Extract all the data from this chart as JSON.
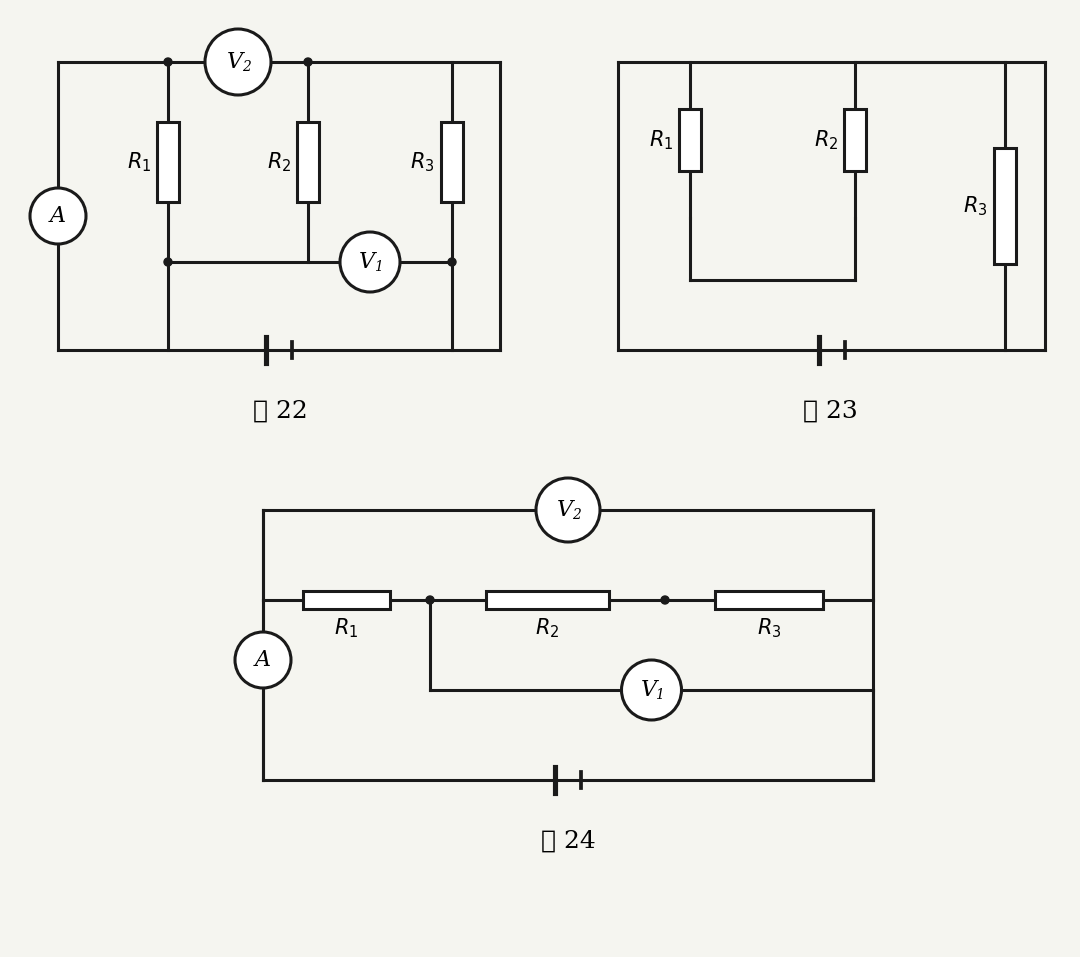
{
  "background_color": "#f5f5f0",
  "line_color": "#1a1a1a",
  "line_width": 2.2,
  "fig22_caption": "图 22",
  "fig23_caption": "图 23",
  "fig24_caption": "图 24",
  "font_size_label": 15,
  "font_size_caption": 18,
  "font_size_meter": 16
}
